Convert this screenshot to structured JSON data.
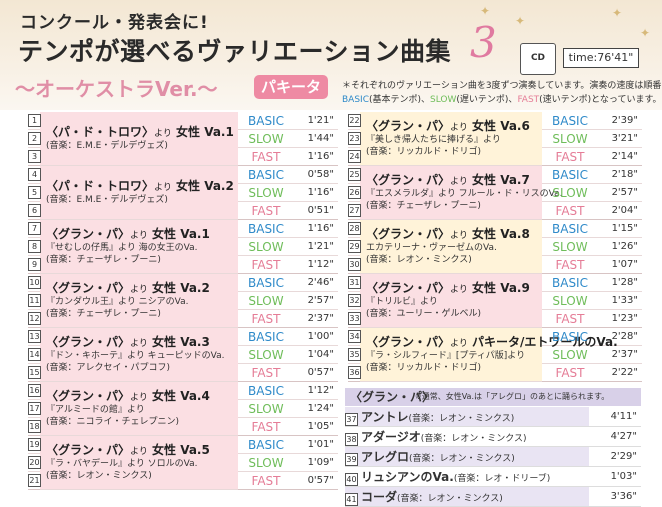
{
  "header": {
    "subtitle": "コンクール・発表会に!",
    "title": "テンポが選べるヴァリエーション曲集",
    "volume": "3",
    "orchestra": "〜オーケストラVer.〜",
    "part": "パキータ",
    "cd_label": "CD",
    "time": "time:76'41\"",
    "note1": "＊それぞれのヴァリエーション曲を3度ずつ演奏しています。演奏の速度は順番に",
    "note2_basic": "BASIC",
    "note2_basic_desc": "(基本テンポ)、",
    "note2_slow": "SLOW",
    "note2_slow_desc": "(遅いテンポ)、",
    "note2_fast": "FAST",
    "note2_fast_desc": "(速いテンポ)となっています。"
  },
  "colors": {
    "basic": "#2f8ac9",
    "slow": "#6fbd5a",
    "fast": "#e57d97",
    "accent": "#ee8aa3"
  },
  "left_groups": [
    {
      "nums": [
        "1",
        "2",
        "3"
      ],
      "title": "〈パ・ド・トロワ〉より 女性 Va.1",
      "sub1": "",
      "sub2": "(音楽：E.M.E・デルデヴェズ)",
      "durs": [
        "1'21\"",
        "1'44\"",
        "1'16\""
      ]
    },
    {
      "nums": [
        "4",
        "5",
        "6"
      ],
      "title": "〈パ・ド・トロワ〉より 女性 Va.2",
      "sub1": "",
      "sub2": "(音楽：E.M.E・デルデヴェズ)",
      "durs": [
        "0'58\"",
        "1'16\"",
        "0'51\""
      ]
    },
    {
      "nums": [
        "7",
        "8",
        "9"
      ],
      "title": "〈グラン・パ〉より 女性 Va.1",
      "sub1": "『せむしの仔馬』より 海の女王のVa.",
      "sub2": "(音楽：チェーザレ・プーニ)",
      "durs": [
        "1'16\"",
        "1'21\"",
        "1'12\""
      ]
    },
    {
      "nums": [
        "10",
        "11",
        "12"
      ],
      "title": "〈グラン・パ〉より 女性 Va.2",
      "sub1": "『カンダウル王』より ニシアのVa.",
      "sub2": "(音楽：チェーザレ・プーニ)",
      "durs": [
        "2'46\"",
        "2'57\"",
        "2'37\""
      ]
    },
    {
      "nums": [
        "13",
        "14",
        "15"
      ],
      "title": "〈グラン・パ〉より 女性 Va.3",
      "sub1": "『ドン・キホーテ』より キューピッドのVa.",
      "sub2": "(音楽：アレクセイ・パプコフ)",
      "durs": [
        "1'00\"",
        "1'04\"",
        "0'57\""
      ]
    },
    {
      "nums": [
        "16",
        "17",
        "18"
      ],
      "title": "〈グラン・パ〉より 女性 Va.4",
      "sub1": "『アルミードの館』より",
      "sub2": "(音楽：ニコライ・チェレプニン)",
      "durs": [
        "1'12\"",
        "1'24\"",
        "1'05\""
      ]
    },
    {
      "nums": [
        "19",
        "20",
        "21"
      ],
      "title": "〈グラン・パ〉より 女性 Va.5",
      "sub1": "『ラ・バヤデール』より ソロルのVa.",
      "sub2": "(音楽：レオン・ミンクス)",
      "durs": [
        "1'01\"",
        "1'09\"",
        "0'57\""
      ]
    }
  ],
  "right_groups": [
    {
      "nums": [
        "22",
        "23",
        "24"
      ],
      "title": "〈グラン・パ〉より 女性 Va.6",
      "sub1": "『美しき帰人たちに捧げる』より",
      "sub2": "(音楽：リッカルド・ドリゴ)",
      "durs": [
        "2'39\"",
        "3'21\"",
        "2'14\""
      ]
    },
    {
      "nums": [
        "25",
        "26",
        "27"
      ],
      "title": "〈グラン・パ〉より 女性 Va.7",
      "sub1": "『エスメラルダ』より フルール・ド・リスのVa.",
      "sub2": "(音楽：チェーザレ・プーニ)",
      "durs": [
        "2'18\"",
        "2'57\"",
        "2'04\""
      ]
    },
    {
      "nums": [
        "28",
        "29",
        "30"
      ],
      "title": "〈グラン・パ〉より 女性 Va.8",
      "sub1": "エカテリーナ・ヴァーゼムのVa.",
      "sub2": "(音楽：レオン・ミンクス)",
      "durs": [
        "1'15\"",
        "1'26\"",
        "1'07\""
      ]
    },
    {
      "nums": [
        "31",
        "32",
        "33"
      ],
      "title": "〈グラン・パ〉より 女性 Va.9",
      "sub1": "『トリルビ』より",
      "sub2": "(音楽：ユーリー・ゲルベル)",
      "durs": [
        "1'28\"",
        "1'33\"",
        "1'23\""
      ]
    },
    {
      "nums": [
        "34",
        "35",
        "36"
      ],
      "title": "〈グラン・パ〉より パキータ/エトワールのVa.",
      "sub1": "『ラ・シルフィード』[プティパ版]より",
      "sub2": "(音楽：リッカルド・ドリゴ)",
      "durs": [
        "2'28\"",
        "2'37\"",
        "2'22\""
      ]
    }
  ],
  "tempos": [
    "BASIC",
    "SLOW",
    "FAST"
  ],
  "grand_pas": {
    "title": "〈グラン・パ〉",
    "note": "※通常、女性Va.は「アレグロ」のあとに踊られます。",
    "items": [
      {
        "num": "37",
        "name": "アントレ",
        "credit": "(音楽：レオン・ミンクス)",
        "dur": "4'11\""
      },
      {
        "num": "38",
        "name": "アダージオ",
        "credit": "(音楽：レオン・ミンクス)",
        "dur": "4'27\""
      },
      {
        "num": "39",
        "name": "アレグロ",
        "credit": "(音楽：レオン・ミンクス)",
        "dur": "2'29\""
      },
      {
        "num": "40",
        "name": "リュシアンのVa.",
        "credit": "(音楽：レオ・ドリーブ)",
        "dur": "1'03\""
      },
      {
        "num": "41",
        "name": "コーダ",
        "credit": "(音楽：レオン・ミンクス)",
        "dur": "3'36\""
      }
    ]
  }
}
